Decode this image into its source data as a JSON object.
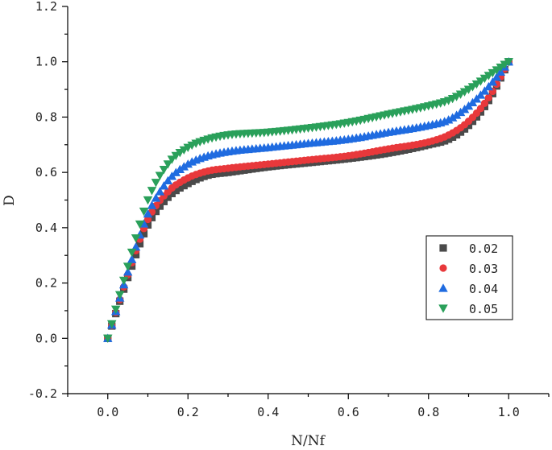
{
  "chart_data": {
    "type": "scatter",
    "title": "",
    "xlabel": "N/Nf",
    "ylabel": "D",
    "xlim": [
      -0.1,
      1.1
    ],
    "ylim": [
      -0.2,
      1.2
    ],
    "xticks": [
      0.0,
      0.2,
      0.4,
      0.6,
      0.8,
      1.0
    ],
    "xtick_labels": [
      "0.0",
      "0.2",
      "0.4",
      "0.6",
      "0.8",
      "1.0"
    ],
    "yticks": [
      -0.2,
      0.0,
      0.2,
      0.4,
      0.6,
      0.8,
      1.0,
      1.2
    ],
    "ytick_labels": [
      "-0.2",
      "0.0",
      "0.2",
      "0.4",
      "0.6",
      "0.8",
      "1.0",
      "1.2"
    ],
    "grid": false,
    "legend_position": "right",
    "series": [
      {
        "name": "0.02",
        "color": "#4a4a4a",
        "marker": "square",
        "x": [
          0.0,
          0.05,
          0.1,
          0.15,
          0.2,
          0.25,
          0.3,
          0.4,
          0.5,
          0.6,
          0.7,
          0.8,
          0.85,
          0.9,
          0.95,
          1.0
        ],
        "y": [
          0.0,
          0.22,
          0.41,
          0.51,
          0.56,
          0.59,
          0.6,
          0.62,
          0.635,
          0.65,
          0.67,
          0.7,
          0.72,
          0.77,
          0.86,
          1.0
        ]
      },
      {
        "name": "0.03",
        "color": "#e8383b",
        "marker": "circle",
        "x": [
          0.0,
          0.05,
          0.1,
          0.15,
          0.2,
          0.25,
          0.3,
          0.4,
          0.5,
          0.6,
          0.7,
          0.8,
          0.85,
          0.9,
          0.95,
          1.0
        ],
        "y": [
          0.0,
          0.23,
          0.43,
          0.53,
          0.58,
          0.605,
          0.615,
          0.63,
          0.645,
          0.66,
          0.685,
          0.71,
          0.735,
          0.785,
          0.87,
          1.0
        ]
      },
      {
        "name": "0.04",
        "color": "#1f6be0",
        "marker": "triangle-up",
        "x": [
          0.0,
          0.05,
          0.1,
          0.15,
          0.2,
          0.25,
          0.3,
          0.4,
          0.5,
          0.6,
          0.7,
          0.8,
          0.85,
          0.9,
          0.95,
          1.0
        ],
        "y": [
          0.0,
          0.24,
          0.45,
          0.57,
          0.63,
          0.66,
          0.675,
          0.69,
          0.705,
          0.72,
          0.745,
          0.77,
          0.79,
          0.84,
          0.91,
          1.0
        ]
      },
      {
        "name": "0.05",
        "color": "#2aa05a",
        "marker": "triangle-down",
        "x": [
          0.0,
          0.05,
          0.1,
          0.15,
          0.2,
          0.25,
          0.3,
          0.4,
          0.5,
          0.6,
          0.7,
          0.8,
          0.85,
          0.9,
          0.95,
          1.0
        ],
        "y": [
          0.0,
          0.26,
          0.5,
          0.63,
          0.69,
          0.72,
          0.735,
          0.745,
          0.76,
          0.78,
          0.81,
          0.84,
          0.86,
          0.9,
          0.95,
          1.0
        ]
      }
    ]
  }
}
